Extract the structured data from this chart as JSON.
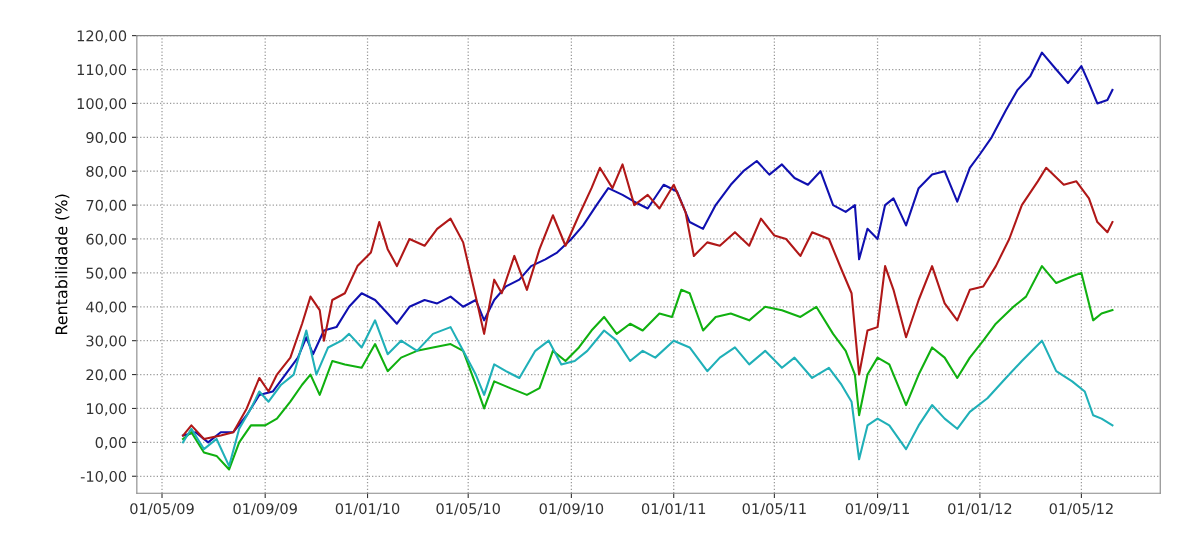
{
  "chart_data": {
    "type": "line",
    "ylabel": "Rentabilidade (%)",
    "xlim": [
      "2009-04-01",
      "2012-08-03"
    ],
    "ylim": [
      -15,
      120
    ],
    "xticks": [
      {
        "value": "2009-05-01",
        "label": "01/05/09"
      },
      {
        "value": "2009-09-01",
        "label": "01/09/09"
      },
      {
        "value": "2010-01-01",
        "label": "01/01/10"
      },
      {
        "value": "2010-05-01",
        "label": "01/05/10"
      },
      {
        "value": "2010-09-01",
        "label": "01/09/10"
      },
      {
        "value": "2011-01-01",
        "label": "01/01/11"
      },
      {
        "value": "2011-05-01",
        "label": "01/05/11"
      },
      {
        "value": "2011-09-01",
        "label": "01/09/11"
      },
      {
        "value": "2012-01-01",
        "label": "01/01/12"
      },
      {
        "value": "2012-05-01",
        "label": "01/05/12"
      }
    ],
    "yticks": [
      {
        "value": -10,
        "label": "-10,00"
      },
      {
        "value": 0,
        "label": "0,00"
      },
      {
        "value": 10,
        "label": "10,00"
      },
      {
        "value": 20,
        "label": "20,00"
      },
      {
        "value": 30,
        "label": "30,00"
      },
      {
        "value": 40,
        "label": "40,00"
      },
      {
        "value": 50,
        "label": "50,00"
      },
      {
        "value": 60,
        "label": "60,00"
      },
      {
        "value": 70,
        "label": "70,00"
      },
      {
        "value": 80,
        "label": "80,00"
      },
      {
        "value": 90,
        "label": "90,00"
      },
      {
        "value": 100,
        "label": "100,00"
      },
      {
        "value": 110,
        "label": "110,00"
      },
      {
        "value": 120,
        "label": "120,00"
      }
    ],
    "grid": true,
    "marker": "none",
    "line_style": "solid",
    "series": [
      {
        "color": "#1010b0",
        "x": [
          "2009-05-26",
          "2009-06-10",
          "2009-06-25",
          "2009-07-10",
          "2009-07-25",
          "2009-08-10",
          "2009-08-25",
          "2009-09-10",
          "2009-09-25",
          "2009-10-10",
          "2009-10-20",
          "2009-10-28",
          "2009-11-10",
          "2009-11-25",
          "2009-12-10",
          "2009-12-25",
          "2010-01-10",
          "2010-01-25",
          "2010-02-05",
          "2010-02-20",
          "2010-03-10",
          "2010-03-25",
          "2010-04-10",
          "2010-04-25",
          "2010-05-10",
          "2010-05-20",
          "2010-06-01",
          "2010-06-15",
          "2010-07-01",
          "2010-07-15",
          "2010-08-01",
          "2010-08-15",
          "2010-09-01",
          "2010-09-15",
          "2010-10-01",
          "2010-10-15",
          "2010-11-01",
          "2010-11-15",
          "2010-12-01",
          "2010-12-20",
          "2011-01-05",
          "2011-01-20",
          "2011-02-05",
          "2011-02-20",
          "2011-03-10",
          "2011-03-25",
          "2011-04-10",
          "2011-04-25",
          "2011-05-10",
          "2011-05-25",
          "2011-06-10",
          "2011-06-25",
          "2011-07-10",
          "2011-07-25",
          "2011-08-05",
          "2011-08-10",
          "2011-08-20",
          "2011-09-01",
          "2011-09-10",
          "2011-09-20",
          "2011-10-05",
          "2011-10-20",
          "2011-11-05",
          "2011-11-20",
          "2011-12-05",
          "2011-12-20",
          "2012-01-01",
          "2012-01-15",
          "2012-02-01",
          "2012-02-15",
          "2012-03-01",
          "2012-03-15",
          "2012-04-01",
          "2012-04-15",
          "2012-05-01",
          "2012-05-10",
          "2012-05-20",
          "2012-06-01",
          "2012-06-07"
        ],
        "values": [
          2,
          3,
          0,
          3,
          3,
          8,
          14,
          15,
          20,
          25,
          31,
          26,
          33,
          34,
          40,
          44,
          42,
          38,
          35,
          40,
          42,
          41,
          43,
          40,
          42,
          36,
          42,
          46,
          48,
          52,
          54,
          56,
          60,
          64,
          70,
          75,
          73,
          71,
          69,
          76,
          74,
          65,
          63,
          70,
          76,
          80,
          83,
          79,
          82,
          78,
          76,
          80,
          70,
          68,
          70,
          54,
          63,
          60,
          70,
          72,
          64,
          75,
          79,
          80,
          71,
          81,
          85,
          90,
          98,
          104,
          108,
          115,
          110,
          106,
          111,
          106,
          100,
          101,
          104
        ]
      },
      {
        "color": "#b01818",
        "x": [
          "2009-05-26",
          "2009-06-05",
          "2009-06-20",
          "2009-07-10",
          "2009-07-25",
          "2009-08-10",
          "2009-08-25",
          "2009-09-05",
          "2009-09-15",
          "2009-10-01",
          "2009-10-15",
          "2009-10-25",
          "2009-11-05",
          "2009-11-10",
          "2009-11-20",
          "2009-12-05",
          "2009-12-20",
          "2010-01-05",
          "2010-01-15",
          "2010-01-25",
          "2010-02-05",
          "2010-02-20",
          "2010-03-10",
          "2010-03-25",
          "2010-04-10",
          "2010-04-25",
          "2010-05-10",
          "2010-05-20",
          "2010-06-01",
          "2010-06-10",
          "2010-06-25",
          "2010-07-10",
          "2010-07-25",
          "2010-08-10",
          "2010-08-25",
          "2010-09-10",
          "2010-09-25",
          "2010-10-05",
          "2010-10-20",
          "2010-11-01",
          "2010-11-15",
          "2010-12-01",
          "2010-12-15",
          "2011-01-01",
          "2011-01-15",
          "2011-01-25",
          "2011-02-10",
          "2011-02-25",
          "2011-03-15",
          "2011-04-01",
          "2011-04-15",
          "2011-05-01",
          "2011-05-15",
          "2011-06-01",
          "2011-06-15",
          "2011-07-05",
          "2011-07-20",
          "2011-08-01",
          "2011-08-10",
          "2011-08-20",
          "2011-09-01",
          "2011-09-10",
          "2011-09-20",
          "2011-10-05",
          "2011-10-20",
          "2011-11-05",
          "2011-11-20",
          "2011-12-05",
          "2011-12-20",
          "2012-01-05",
          "2012-01-20",
          "2012-02-05",
          "2012-02-20",
          "2012-03-10",
          "2012-03-20",
          "2012-04-10",
          "2012-04-25",
          "2012-05-10",
          "2012-05-20",
          "2012-06-01",
          "2012-06-07"
        ],
        "values": [
          2,
          5,
          1,
          2,
          3,
          10,
          19,
          15,
          20,
          25,
          35,
          43,
          39,
          30,
          42,
          44,
          52,
          56,
          65,
          57,
          52,
          60,
          58,
          63,
          66,
          59,
          43,
          32,
          48,
          44,
          55,
          45,
          57,
          67,
          58,
          67,
          75,
          81,
          75,
          82,
          70,
          73,
          69,
          76,
          68,
          55,
          59,
          58,
          62,
          58,
          66,
          61,
          60,
          55,
          62,
          60,
          51,
          44,
          20,
          33,
          34,
          52,
          45,
          31,
          42,
          52,
          41,
          36,
          45,
          46,
          52,
          60,
          70,
          77,
          81,
          76,
          77,
          72,
          65,
          62,
          65
        ]
      },
      {
        "color": "#10b010",
        "x": [
          "2009-05-26",
          "2009-06-05",
          "2009-06-20",
          "2009-07-05",
          "2009-07-20",
          "2009-08-01",
          "2009-08-15",
          "2009-09-01",
          "2009-09-15",
          "2009-10-01",
          "2009-10-15",
          "2009-10-25",
          "2009-11-05",
          "2009-11-20",
          "2009-12-05",
          "2009-12-25",
          "2010-01-10",
          "2010-01-25",
          "2010-02-10",
          "2010-03-01",
          "2010-03-20",
          "2010-04-10",
          "2010-04-25",
          "2010-05-10",
          "2010-05-20",
          "2010-06-01",
          "2010-06-20",
          "2010-07-10",
          "2010-07-25",
          "2010-08-10",
          "2010-08-25",
          "2010-09-10",
          "2010-09-25",
          "2010-10-10",
          "2010-10-25",
          "2010-11-10",
          "2010-11-25",
          "2010-12-15",
          "2010-12-30",
          "2011-01-10",
          "2011-01-20",
          "2011-02-05",
          "2011-02-20",
          "2011-03-10",
          "2011-04-01",
          "2011-04-20",
          "2011-05-10",
          "2011-06-01",
          "2011-06-20",
          "2011-07-10",
          "2011-07-25",
          "2011-08-05",
          "2011-08-10",
          "2011-08-20",
          "2011-09-01",
          "2011-09-15",
          "2011-10-05",
          "2011-10-20",
          "2011-11-05",
          "2011-11-20",
          "2011-12-05",
          "2011-12-20",
          "2012-01-05",
          "2012-01-20",
          "2012-02-10",
          "2012-02-25",
          "2012-03-15",
          "2012-04-01",
          "2012-04-20",
          "2012-05-01",
          "2012-05-15",
          "2012-05-25",
          "2012-06-07"
        ],
        "values": [
          1,
          3,
          -3,
          -4,
          -8,
          0,
          5,
          5,
          7,
          12,
          17,
          20,
          14,
          24,
          23,
          22,
          29,
          21,
          25,
          27,
          28,
          29,
          27,
          17,
          10,
          18,
          16,
          14,
          16,
          27,
          24,
          28,
          33,
          37,
          32,
          35,
          33,
          38,
          37,
          45,
          44,
          33,
          37,
          38,
          36,
          40,
          39,
          37,
          40,
          32,
          27,
          20,
          8,
          20,
          25,
          23,
          11,
          20,
          28,
          25,
          19,
          25,
          30,
          35,
          40,
          43,
          52,
          47,
          49,
          50,
          36,
          38,
          39
        ]
      },
      {
        "color": "#20b0b8",
        "x": [
          "2009-05-26",
          "2009-06-05",
          "2009-06-20",
          "2009-07-05",
          "2009-07-20",
          "2009-08-01",
          "2009-08-15",
          "2009-08-25",
          "2009-09-05",
          "2009-09-20",
          "2009-10-05",
          "2009-10-20",
          "2009-11-01",
          "2009-11-15",
          "2009-12-01",
          "2009-12-10",
          "2009-12-25",
          "2010-01-10",
          "2010-01-25",
          "2010-02-10",
          "2010-03-01",
          "2010-03-20",
          "2010-04-10",
          "2010-04-25",
          "2010-05-10",
          "2010-05-20",
          "2010-06-01",
          "2010-06-15",
          "2010-07-01",
          "2010-07-20",
          "2010-08-05",
          "2010-08-20",
          "2010-09-05",
          "2010-09-20",
          "2010-10-10",
          "2010-10-25",
          "2010-11-10",
          "2010-11-25",
          "2010-12-10",
          "2011-01-01",
          "2011-01-20",
          "2011-02-10",
          "2011-02-25",
          "2011-03-15",
          "2011-04-01",
          "2011-04-20",
          "2011-05-10",
          "2011-05-25",
          "2011-06-15",
          "2011-07-05",
          "2011-07-20",
          "2011-08-01",
          "2011-08-10",
          "2011-08-20",
          "2011-09-01",
          "2011-09-15",
          "2011-10-05",
          "2011-10-20",
          "2011-11-05",
          "2011-11-20",
          "2011-12-05",
          "2011-12-20",
          "2012-01-10",
          "2012-02-01",
          "2012-02-20",
          "2012-03-15",
          "2012-04-01",
          "2012-04-20",
          "2012-05-05",
          "2012-05-15",
          "2012-05-25",
          "2012-06-07"
        ],
        "values": [
          0,
          4,
          -2,
          1,
          -7,
          4,
          10,
          15,
          12,
          17,
          20,
          33,
          20,
          28,
          30,
          32,
          28,
          36,
          26,
          30,
          27,
          32,
          34,
          27,
          20,
          14,
          23,
          21,
          19,
          27,
          30,
          23,
          24,
          27,
          33,
          30,
          24,
          27,
          25,
          30,
          28,
          21,
          25,
          28,
          23,
          27,
          22,
          25,
          19,
          22,
          17,
          12,
          -5,
          5,
          7,
          5,
          -2,
          5,
          11,
          7,
          4,
          9,
          13,
          19,
          24,
          30,
          21,
          18,
          15,
          8,
          7,
          5
        ]
      }
    ]
  }
}
